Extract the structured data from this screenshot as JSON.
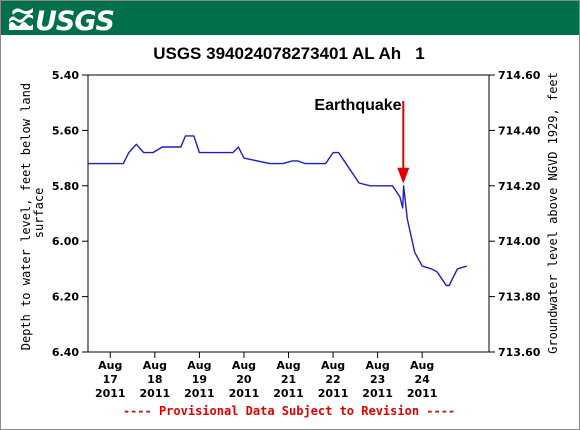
{
  "logo_text": "USGS",
  "colors": {
    "banner": "#00704a",
    "series": "#1f1fbf",
    "arrow": "#e00000",
    "footer": "#e00000"
  },
  "footer": "---- Provisional Data Subject to Revision ----",
  "chart_data": {
    "type": "line",
    "title": "USGS 394024078273401 AL Ah   1",
    "ylabel_left": "Depth to water level, feet below land surface",
    "ylabel_right": "Groundwater level above NGVD 1929, feet",
    "xlabel": "",
    "ylim_left": [
      6.4,
      5.4
    ],
    "ylim_right": [
      713.6,
      714.6
    ],
    "xlim": [
      "2011-08-16T12:00",
      "2011-08-25T12:00"
    ],
    "y_ticks_left": [
      "5.40",
      "5.60",
      "5.80",
      "6.00",
      "6.20",
      "6.40"
    ],
    "y_ticks_right": [
      "714.60",
      "714.40",
      "714.20",
      "714.00",
      "713.80",
      "713.60"
    ],
    "x_ticks": [
      {
        "month": "Aug",
        "day": "17",
        "year": "2011",
        "x": "2011-08-17T00:00"
      },
      {
        "month": "Aug",
        "day": "18",
        "year": "2011",
        "x": "2011-08-18T00:00"
      },
      {
        "month": "Aug",
        "day": "19",
        "year": "2011",
        "x": "2011-08-19T00:00"
      },
      {
        "month": "Aug",
        "day": "20",
        "year": "2011",
        "x": "2011-08-20T00:00"
      },
      {
        "month": "Aug",
        "day": "21",
        "year": "2011",
        "x": "2011-08-21T00:00"
      },
      {
        "month": "Aug",
        "day": "22",
        "year": "2011",
        "x": "2011-08-22T00:00"
      },
      {
        "month": "Aug",
        "day": "23",
        "year": "2011",
        "x": "2011-08-23T00:00"
      },
      {
        "month": "Aug",
        "day": "24",
        "year": "2011",
        "x": "2011-08-24T00:00"
      }
    ],
    "grid": false,
    "annotation": {
      "text": "Earthquake",
      "x": "2011-08-23T13:50",
      "y": 5.8
    },
    "series": [
      {
        "x": [
          "2011-08-16T12:00",
          "2011-08-17T03:00",
          "2011-08-17T07:00",
          "2011-08-17T10:00",
          "2011-08-17T14:00",
          "2011-08-17T18:00",
          "2011-08-17T23:00",
          "2011-08-18T04:00",
          "2011-08-18T08:00",
          "2011-08-18T14:00",
          "2011-08-18T16:30",
          "2011-08-18T21:00",
          "2011-08-19T00:00",
          "2011-08-19T09:00",
          "2011-08-19T14:00",
          "2011-08-19T18:00",
          "2011-08-19T21:00",
          "2011-08-20T00:00",
          "2011-08-20T14:00",
          "2011-08-20T16:00",
          "2011-08-20T21:00",
          "2011-08-21T02:00",
          "2011-08-21T05:00",
          "2011-08-21T09:00",
          "2011-08-21T16:00",
          "2011-08-21T20:00",
          "2011-08-22T00:00",
          "2011-08-22T03:00",
          "2011-08-22T09:00",
          "2011-08-22T14:00",
          "2011-08-22T20:00",
          "2011-08-23T02:00",
          "2011-08-23T08:00",
          "2011-08-23T12:00",
          "2011-08-23T13:30",
          "2011-08-23T14:00",
          "2011-08-23T16:00",
          "2011-08-23T20:00",
          "2011-08-24T00:00",
          "2011-08-24T05:00",
          "2011-08-24T08:00",
          "2011-08-24T13:00",
          "2011-08-24T14:30",
          "2011-08-24T19:00",
          "2011-08-25T00:00"
        ],
        "values": [
          5.72,
          5.72,
          5.72,
          5.68,
          5.65,
          5.68,
          5.68,
          5.66,
          5.66,
          5.66,
          5.62,
          5.62,
          5.68,
          5.68,
          5.68,
          5.68,
          5.66,
          5.7,
          5.72,
          5.72,
          5.72,
          5.71,
          5.71,
          5.72,
          5.72,
          5.72,
          5.68,
          5.68,
          5.74,
          5.79,
          5.8,
          5.8,
          5.8,
          5.84,
          5.88,
          5.8,
          5.92,
          6.04,
          6.09,
          6.1,
          6.11,
          6.16,
          6.16,
          6.1,
          6.09
        ]
      }
    ]
  }
}
